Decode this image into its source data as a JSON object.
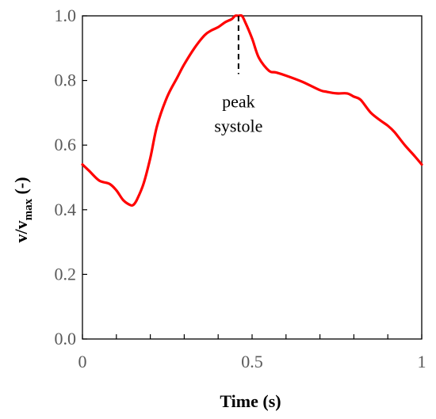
{
  "chart_data": {
    "type": "line",
    "title": "",
    "xlabel": "Time (s)",
    "ylabel_main": "v/v",
    "ylabel_sub": "max",
    "ylabel_unit": " (-)",
    "xlim": [
      0,
      1
    ],
    "ylim": [
      0,
      1.0
    ],
    "x_ticks": [
      0,
      0.5,
      1
    ],
    "x_tick_labels": [
      "0",
      "0.5",
      "1"
    ],
    "x_minor_ticks": [
      0.1,
      0.2,
      0.3,
      0.4,
      0.6,
      0.7,
      0.8,
      0.9
    ],
    "y_ticks": [
      0,
      0.2,
      0.4,
      0.6,
      0.8,
      1.0
    ],
    "y_tick_labels": [
      "0.0",
      "0.2",
      "0.4",
      "0.6",
      "0.8",
      "1.0"
    ],
    "grid": false,
    "series": [
      {
        "color": "#ff0000",
        "x": [
          0,
          0.02,
          0.05,
          0.08,
          0.1,
          0.12,
          0.14,
          0.15,
          0.16,
          0.18,
          0.2,
          0.22,
          0.25,
          0.28,
          0.3,
          0.33,
          0.36,
          0.38,
          0.4,
          0.42,
          0.44,
          0.45,
          0.46,
          0.47,
          0.48,
          0.5,
          0.52,
          0.55,
          0.57,
          0.6,
          0.65,
          0.7,
          0.72,
          0.75,
          0.78,
          0.8,
          0.82,
          0.85,
          0.88,
          0.9,
          0.92,
          0.95,
          0.98,
          1.0
        ],
        "y": [
          0.54,
          0.52,
          0.49,
          0.48,
          0.46,
          0.43,
          0.415,
          0.415,
          0.43,
          0.48,
          0.56,
          0.66,
          0.75,
          0.81,
          0.85,
          0.9,
          0.94,
          0.955,
          0.965,
          0.98,
          0.99,
          1.0,
          1.0,
          1.0,
          0.98,
          0.93,
          0.87,
          0.83,
          0.825,
          0.815,
          0.795,
          0.77,
          0.765,
          0.76,
          0.76,
          0.75,
          0.74,
          0.7,
          0.675,
          0.66,
          0.64,
          0.6,
          0.565,
          0.54
        ]
      }
    ],
    "annotations": [
      {
        "text_line1": "peak",
        "text_line2": "systole",
        "x": 0.46,
        "y_from": 0.82,
        "y_to": 1.0
      }
    ]
  }
}
